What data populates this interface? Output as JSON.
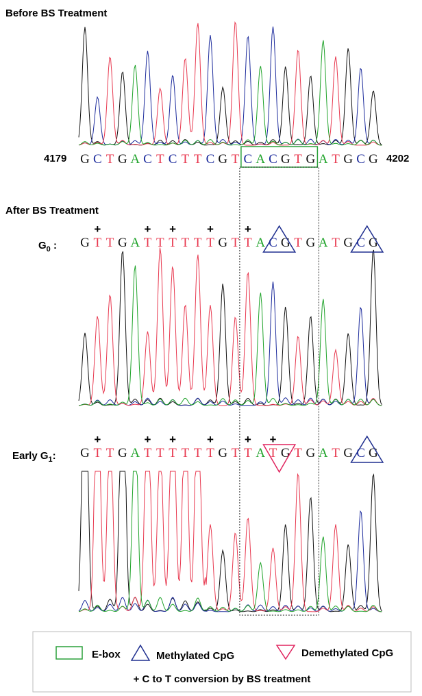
{
  "figure": {
    "before": {
      "title": "Before BS Treatment",
      "start": "4179",
      "end": "4202",
      "sequence": [
        "G",
        "C",
        "T",
        "G",
        "A",
        "C",
        "T",
        "C",
        "T",
        "T",
        "C",
        "G",
        "T",
        "C",
        "A",
        "C",
        "G",
        "T",
        "G",
        "A",
        "T",
        "G",
        "C",
        "G"
      ]
    },
    "after_title": "After BS Treatment",
    "rows": [
      {
        "label": {
          "main": "G",
          "sub": "0",
          "suffix": " :"
        },
        "sequence": [
          "G",
          "T",
          "T",
          "G",
          "A",
          "T",
          "T",
          "T",
          "T",
          "T",
          "T",
          "G",
          "T",
          "T",
          "A",
          "C",
          "G",
          "T",
          "G",
          "A",
          "T",
          "G",
          "C",
          "G"
        ],
        "converted": [
          1,
          5,
          7,
          10,
          13
        ],
        "methylated": [
          15,
          22
        ],
        "demethylated": []
      },
      {
        "label": {
          "main": "Early G",
          "sub": "1",
          "suffix": ":"
        },
        "sequence": [
          "G",
          "T",
          "T",
          "G",
          "A",
          "T",
          "T",
          "T",
          "T",
          "T",
          "T",
          "G",
          "T",
          "T",
          "A",
          "T",
          "G",
          "T",
          "G",
          "A",
          "T",
          "G",
          "C",
          "G"
        ],
        "converted": [
          1,
          5,
          7,
          10,
          13,
          15
        ],
        "methylated": [
          22
        ],
        "demethylated": [
          15
        ]
      }
    ],
    "ebox_start": 13,
    "ebox_end": 18,
    "base_colors": {
      "G": "#111111",
      "C": "#1c2b9c",
      "T": "#e8384f",
      "A": "#1fa32a"
    },
    "conversion_mark": "+",
    "legend": {
      "ebox": "E-box",
      "methylated": "Methylated CpG",
      "demethylated": "Demethylated CpG",
      "conversion": "+ C to T conversion by BS treatment"
    }
  }
}
